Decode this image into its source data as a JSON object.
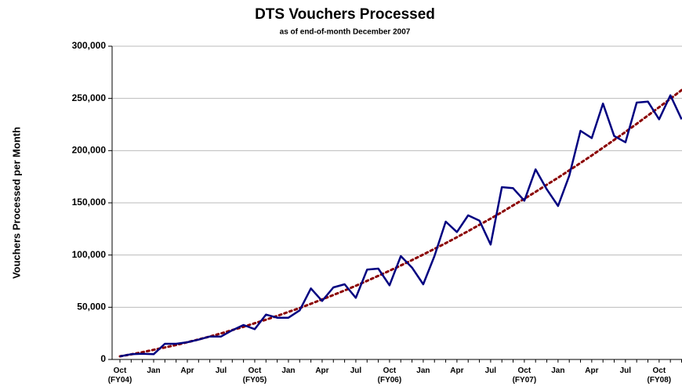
{
  "chart_data": {
    "type": "line",
    "title": "DTS Vouchers Processed",
    "subtitle": "as of end-of-month December 2007",
    "y_label": "Vouchers Processed per Month",
    "categories": [
      "Oct\n(FY04)",
      null,
      null,
      "Jan",
      null,
      null,
      "Apr",
      null,
      null,
      "Jul",
      null,
      null,
      "Oct\n(FY05)",
      null,
      null,
      "Jan",
      null,
      null,
      "Apr",
      null,
      null,
      "Jul",
      null,
      null,
      "Oct\n(FY06)",
      null,
      null,
      "Jan",
      null,
      null,
      "Apr",
      null,
      null,
      "Jul",
      null,
      null,
      "Oct\n(FY07)",
      null,
      null,
      "Jan",
      null,
      null,
      "Apr",
      null,
      null,
      "Jul",
      null,
      null,
      "Oct\n(FY08)",
      null,
      null
    ],
    "series": [
      {
        "color": "#000080",
        "style": "solid",
        "values": [
          3000,
          5000,
          5500,
          5000,
          15000,
          15000,
          16500,
          19000,
          22000,
          22000,
          28000,
          33000,
          29000,
          43000,
          40000,
          40000,
          47000,
          68000,
          56000,
          69000,
          72000,
          59000,
          86000,
          87000,
          71000,
          99000,
          88000,
          72000,
          99000,
          132000,
          122000,
          138000,
          133000,
          110000,
          165000,
          164000,
          152000,
          182000,
          163000,
          147000,
          176000,
          219000,
          212000,
          245000,
          214000,
          208000,
          246000,
          247000,
          230000,
          253000,
          230000
        ]
      },
      {
        "color": "#8b0000",
        "style": "dotted",
        "values": [
          3000,
          4900,
          7000,
          9200,
          11500,
          13900,
          16500,
          19200,
          22000,
          25000,
          28100,
          31300,
          34700,
          38100,
          41700,
          45500,
          49300,
          53300,
          57500,
          61700,
          66100,
          70600,
          75300,
          80100,
          85000,
          90000,
          95200,
          100500,
          105900,
          111400,
          117100,
          122900,
          128900,
          134900,
          141100,
          147500,
          153900,
          160500,
          167300,
          174100,
          181100,
          188200,
          195400,
          202800,
          210300,
          217900,
          225700,
          233600,
          241600,
          249700,
          258000
        ]
      }
    ],
    "ylim": [
      0,
      300000
    ],
    "yticks": [
      {
        "value": 0,
        "label": "0"
      },
      {
        "value": 50000,
        "label": "50,000"
      },
      {
        "value": 100000,
        "label": "100,000"
      },
      {
        "value": 150000,
        "label": "150,000"
      },
      {
        "value": 200000,
        "label": "200,000"
      },
      {
        "value": 250000,
        "label": "250,000"
      },
      {
        "value": 300000,
        "label": "300,000"
      }
    ],
    "grid": true
  }
}
